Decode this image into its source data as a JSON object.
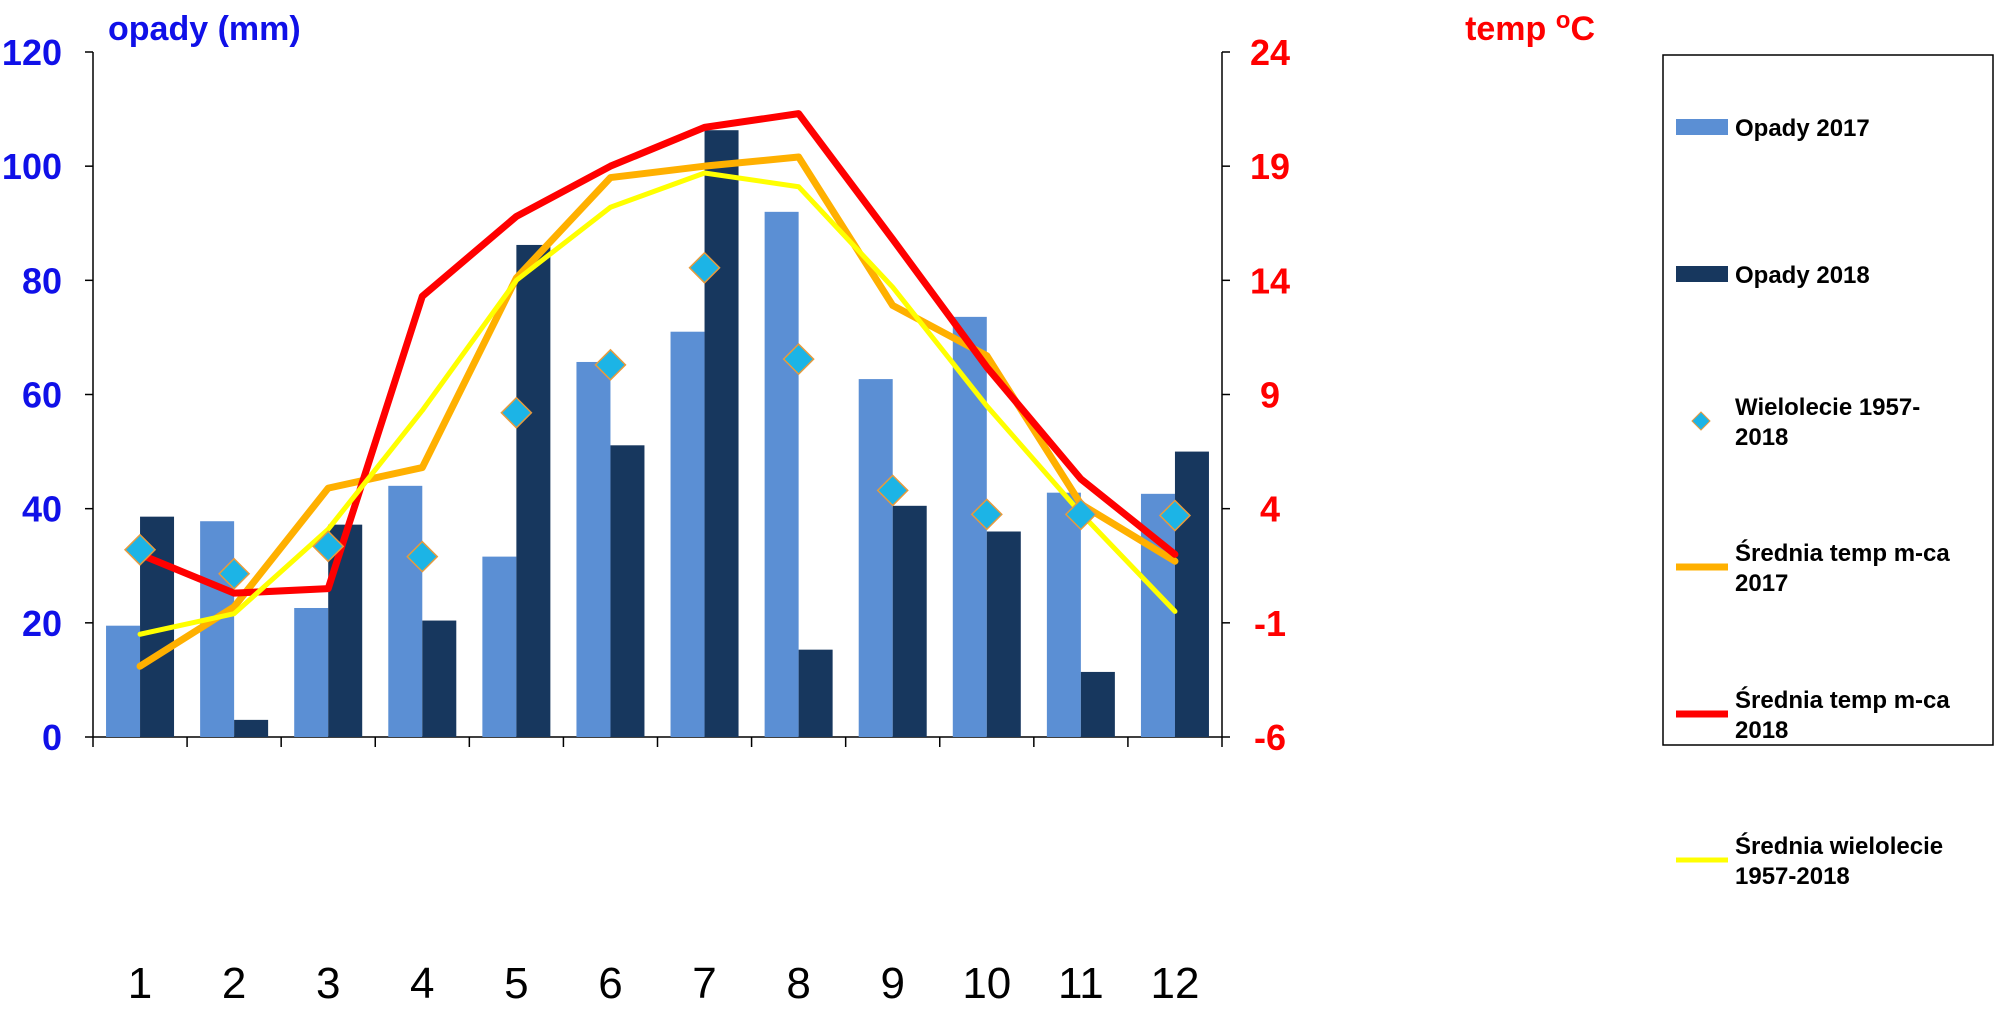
{
  "chart_data": {
    "type": "bar",
    "categories": [
      "1",
      "2",
      "3",
      "4",
      "5",
      "6",
      "7",
      "8",
      "9",
      "10",
      "11",
      "12"
    ],
    "ylabel_left": "opady (mm)",
    "ylabel_right": "temp oC",
    "ylim_left": [
      0,
      120
    ],
    "ylim_right": [
      -6,
      24
    ],
    "yticks_left": [
      "0",
      "20",
      "40",
      "60",
      "80",
      "100",
      "120"
    ],
    "yticks_right": [
      "-6",
      "-1",
      "4",
      "9",
      "14",
      "19",
      "24"
    ],
    "grid": false,
    "legend_position": "right",
    "series": [
      {
        "name": "Opady 2017",
        "kind": "bar",
        "axis": "left",
        "color": "#5b8fd4",
        "values": [
          19.5,
          37.8,
          22.6,
          44.0,
          31.6,
          65.7,
          71.0,
          92.0,
          62.7,
          73.6,
          42.8,
          42.6
        ]
      },
      {
        "name": "Opady 2018",
        "kind": "bar",
        "axis": "left",
        "color": "#17375e",
        "values": [
          38.6,
          3.0,
          37.2,
          20.4,
          86.2,
          51.1,
          106.3,
          15.3,
          40.5,
          36.0,
          11.4,
          50.0
        ]
      },
      {
        "name": "Wielolecie 1957-2018",
        "kind": "scatter",
        "axis": "left",
        "color": "#1cb4e6",
        "values": [
          32.8,
          28.6,
          33.4,
          31.6,
          56.8,
          65.2,
          82.2,
          66.2,
          43.2,
          39.0,
          39.0,
          38.8
        ]
      },
      {
        "name": "Średnia temp m-ca 2017",
        "kind": "line",
        "axis": "right",
        "color": "#ffb000",
        "values": [
          -2.9,
          -0.3,
          4.9,
          5.8,
          14.1,
          18.5,
          19.0,
          19.4,
          12.9,
          10.7,
          4.2,
          1.7
        ]
      },
      {
        "name": "Średnia temp m-ca 2018",
        "kind": "line",
        "axis": "right",
        "color": "#ff0000",
        "values": [
          2.0,
          0.3,
          0.5,
          13.3,
          16.8,
          19.0,
          20.7,
          21.3,
          15.8,
          10.2,
          5.3,
          2.0
        ]
      },
      {
        "name": "Średnia wielolecie 1957-2018",
        "kind": "line",
        "axis": "right",
        "color": "#ffff00",
        "values": [
          -1.5,
          -0.6,
          3.1,
          8.3,
          14.0,
          17.2,
          18.7,
          18.1,
          13.7,
          8.5,
          3.8,
          -0.5
        ]
      }
    ],
    "legend": [
      {
        "lines": [
          "Opady 2017"
        ]
      },
      {
        "lines": [
          "Opady 2018"
        ]
      },
      {
        "lines": [
          "Wielolecie 1957-",
          "2018"
        ]
      },
      {
        "lines": [
          "Średnia temp m-ca",
          "2017"
        ]
      },
      {
        "lines": [
          "Średnia temp m-ca",
          "2018"
        ]
      },
      {
        "lines": [
          "Średnia wielolecie",
          "1957-2018"
        ]
      }
    ]
  }
}
